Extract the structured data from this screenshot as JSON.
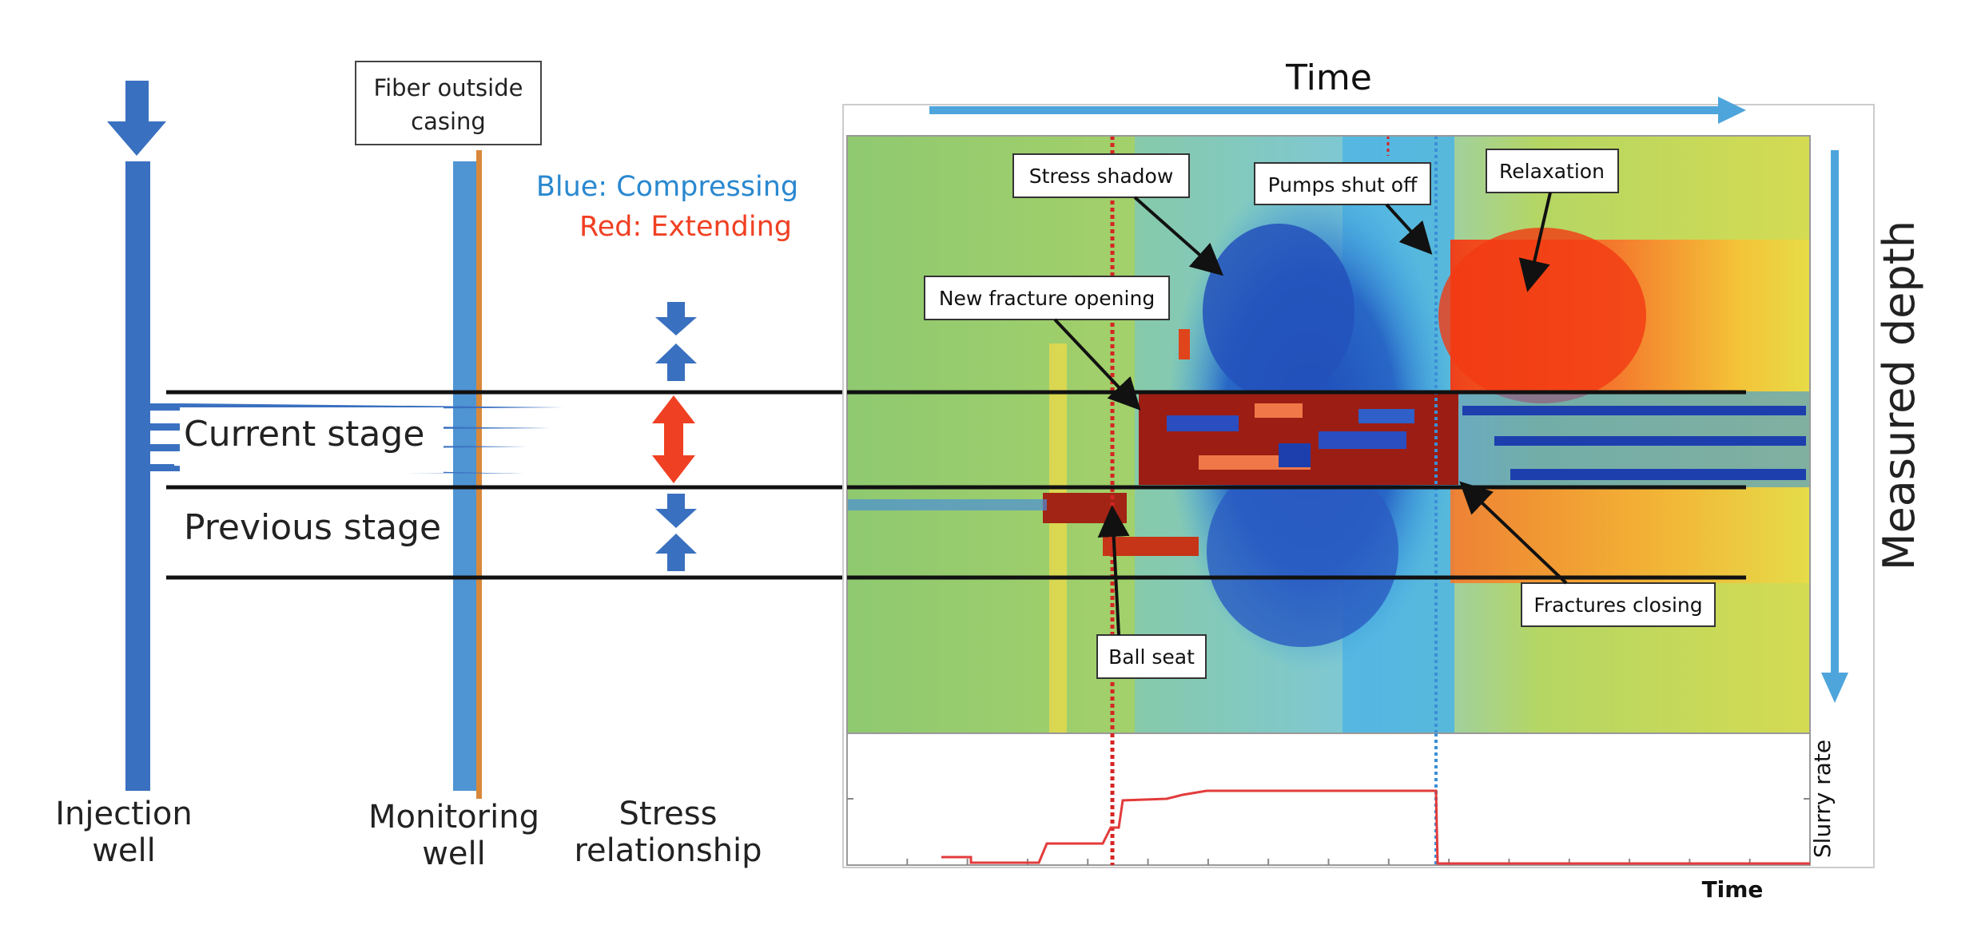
{
  "colors": {
    "well_blue": "#3a70c0",
    "monitor_blue": "#4f94d3",
    "fiber_orange": "#d8883a",
    "compress_blue": "#2a88d0",
    "extend_red": "#f04023",
    "stage_line": "#111111",
    "arrow_lightblue": "#4ea5dc",
    "slurry_red": "#e33b3b",
    "pump_blue": "#3b8fd6",
    "field_green": "#9fce70"
  },
  "icons": {
    "injection_arrow": "down-arrow-icon",
    "compress_arrows": "compress-arrows-icon",
    "extend_arrow": "double-headed-arrow-icon"
  },
  "wells": {
    "injection_label_1": "Injection",
    "injection_label_2": "well",
    "monitoring_label_1": "Monitoring",
    "monitoring_label_2": "well",
    "fiber_label_1": "Fiber outside",
    "fiber_label_2": "casing"
  },
  "stress": {
    "legend_blue": "Blue: Compressing",
    "legend_red": "Red: Extending",
    "label_1": "Stress",
    "label_2": "relationship"
  },
  "stages": {
    "current": "Current stage",
    "previous": "Previous stage"
  },
  "plot": {
    "time_top": "Time",
    "measured_depth": "Measured depth",
    "slurry_rate": "Slurry rate",
    "time_bottom": "Time",
    "annotations": {
      "stress_shadow": "Stress shadow",
      "pumps_shut_off": "Pumps shut off",
      "relaxation": "Relaxation",
      "new_fracture_opening": "New fracture opening",
      "fractures_closing": "Fractures closing",
      "ball_seat": "Ball seat"
    }
  }
}
